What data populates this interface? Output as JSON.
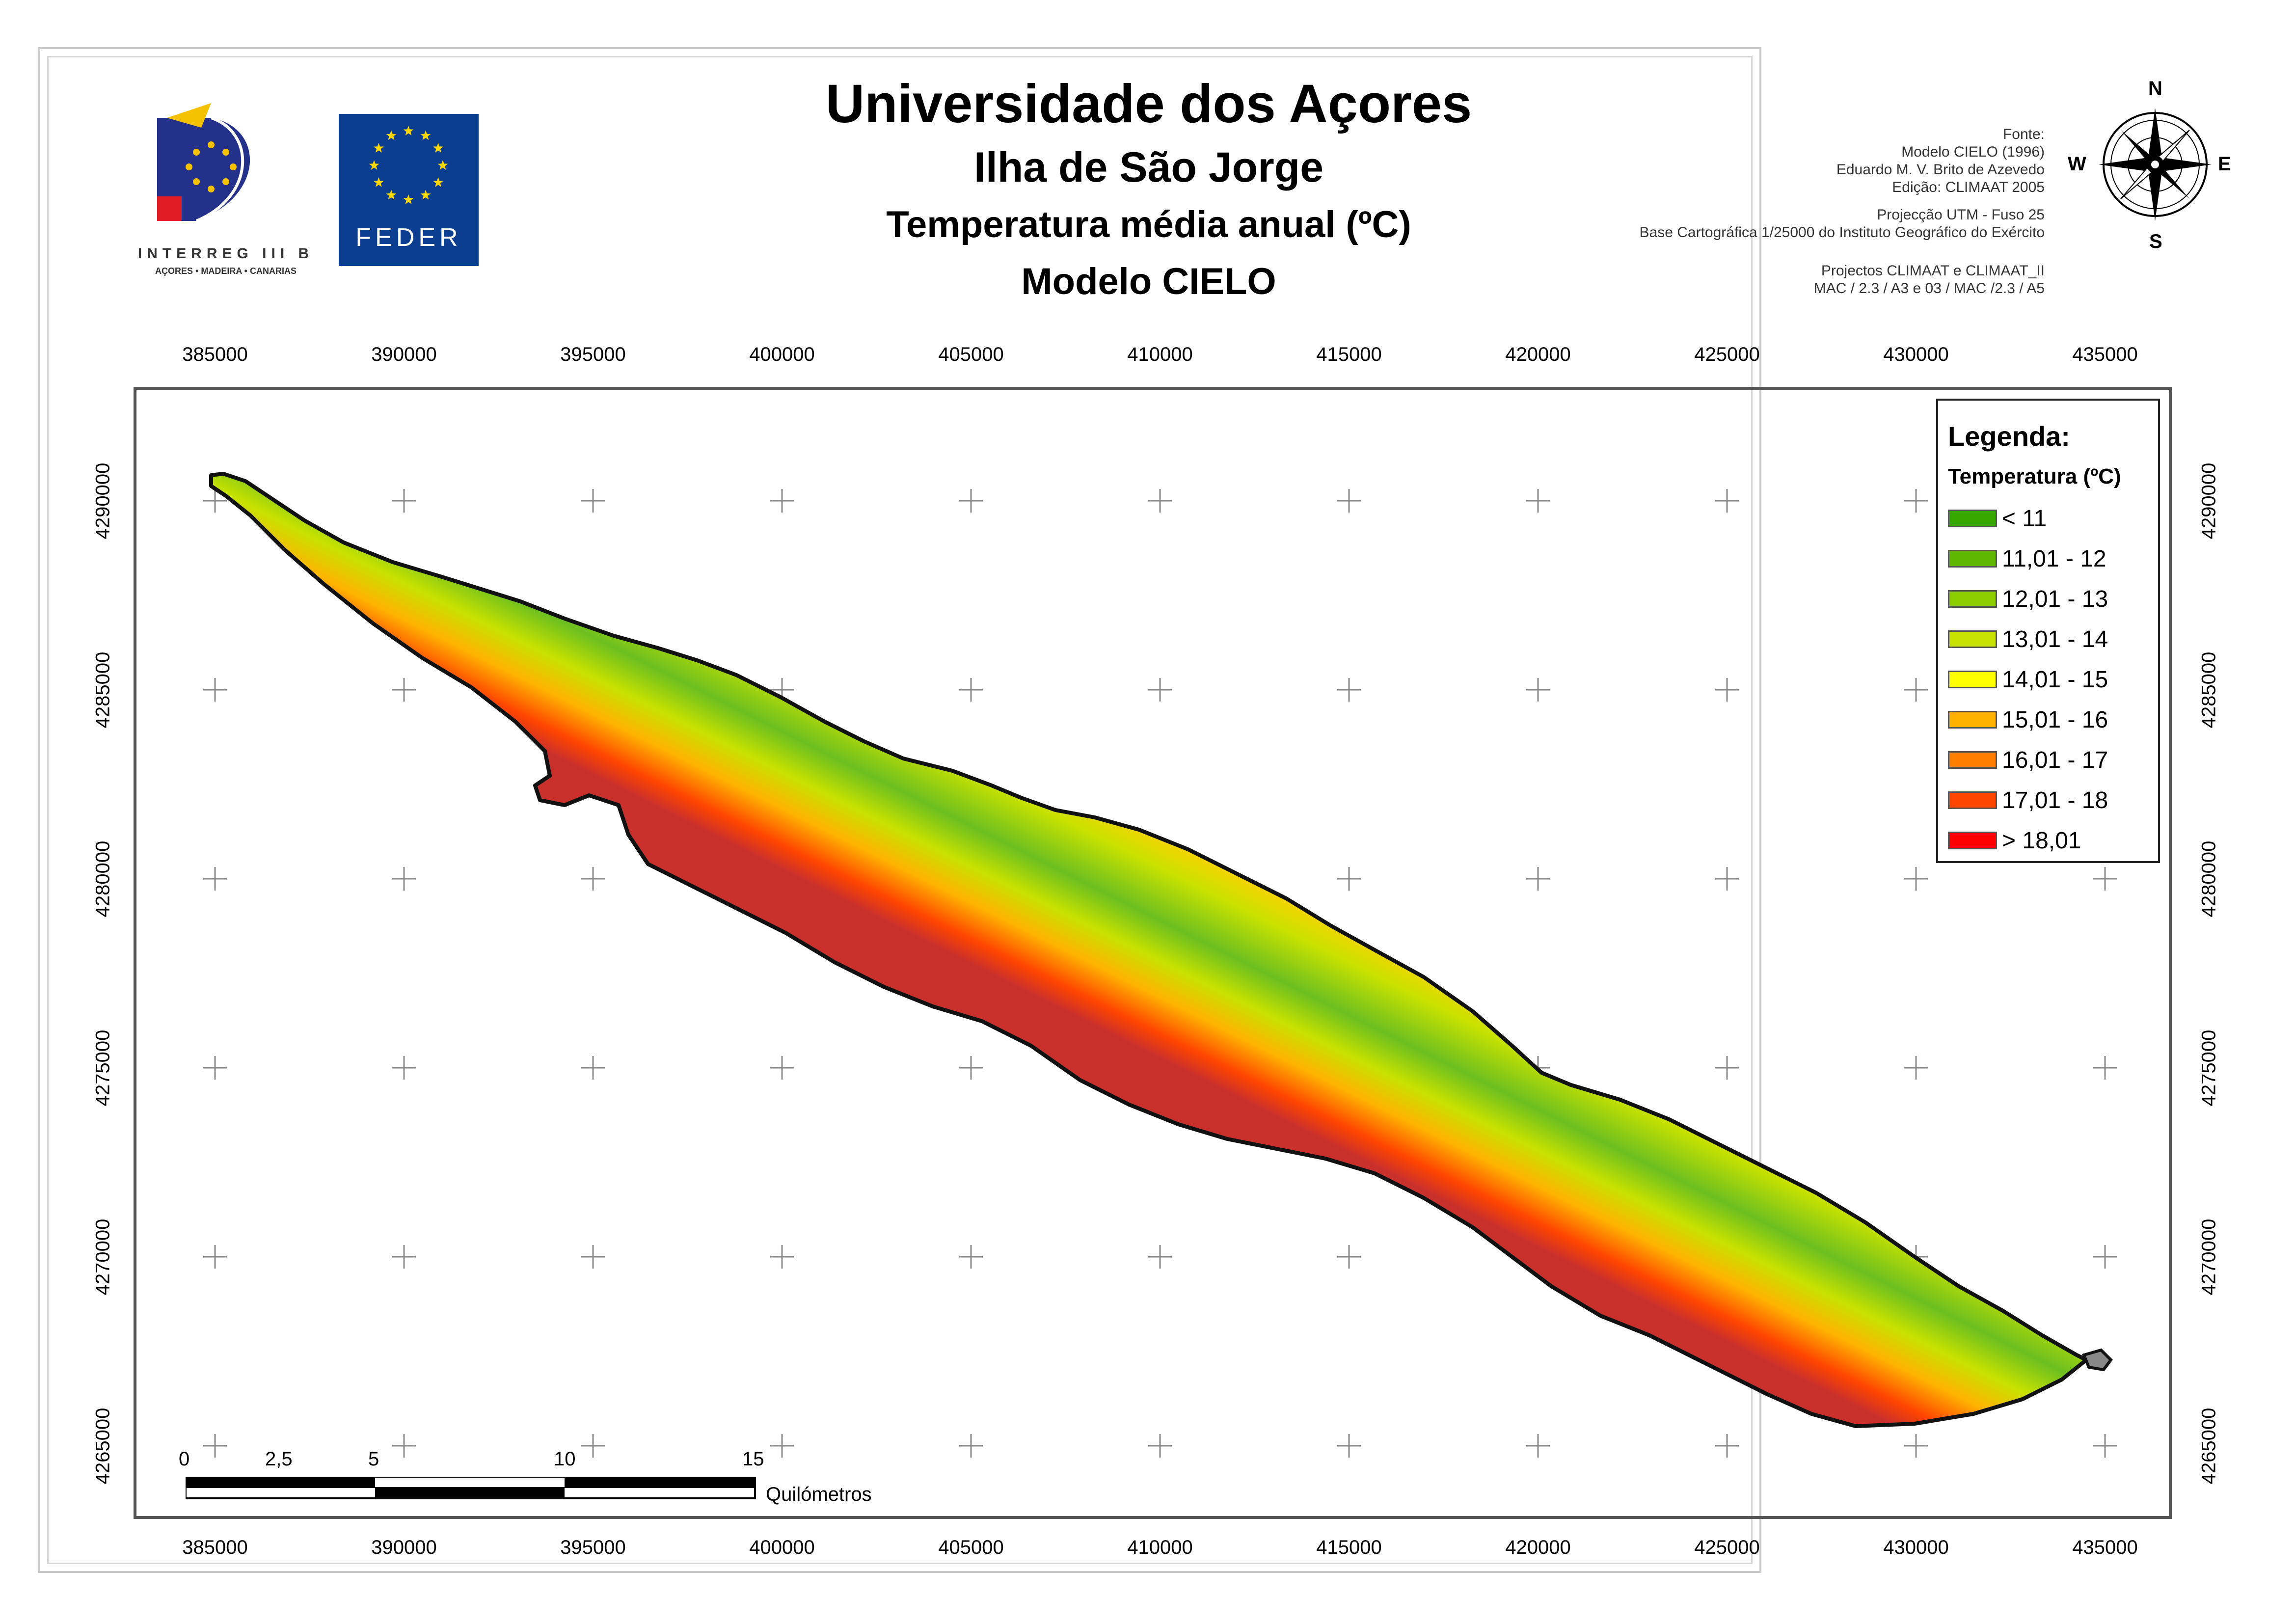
{
  "header": {
    "title": "Universidade dos Açores",
    "island": "Ilha de São Jorge",
    "subject": "Temperatura média anual (ºC)",
    "model": "Modelo CIELO"
  },
  "source": {
    "lines": [
      "Fonte:",
      "Modelo CIELO (1996)",
      "Eduardo M. V. Brito de Azevedo",
      "Edição: CLIMAAT 2005",
      "Projecção UTM - Fuso 25",
      "Base Cartográfica 1/25000 do Instituto Geográfico do Exército",
      "Projectos CLIMAAT e CLIMAAT_II",
      "MAC / 2.3 / A3 e 03 / MAC /2.3 / A5"
    ]
  },
  "logos": {
    "interreg_name": "INTERREG III B",
    "interreg_regions": "AÇORES • MADEIRA • CANARIAS",
    "feder": "FEDER"
  },
  "compass": {
    "n": "N",
    "s": "S",
    "e": "E",
    "w": "W"
  },
  "axes": {
    "x_ticks": [
      "385000",
      "390000",
      "395000",
      "400000",
      "405000",
      "410000",
      "415000",
      "420000",
      "425000",
      "430000",
      "435000"
    ],
    "y_ticks": [
      "4290000",
      "4285000",
      "4280000",
      "4275000",
      "4270000",
      "4265000"
    ]
  },
  "legend": {
    "title": "Legenda:",
    "subtitle": "Temperatura (ºC)",
    "items": [
      {
        "label": "< 11",
        "color": "#38a800"
      },
      {
        "label": "11,01 - 12",
        "color": "#5fb700"
      },
      {
        "label": "12,01 - 13",
        "color": "#8ccd00"
      },
      {
        "label": "13,01 - 14",
        "color": "#c8e200"
      },
      {
        "label": "14,01 - 15",
        "color": "#ffff00"
      },
      {
        "label": "15,01 - 16",
        "color": "#ffb300"
      },
      {
        "label": "16,01 - 17",
        "color": "#ff7f00"
      },
      {
        "label": "17,01 - 18",
        "color": "#ff4500"
      },
      {
        "label": "> 18,01",
        "color": "#ff0000"
      }
    ]
  },
  "scalebar": {
    "labels": [
      "0",
      "2,5",
      "5",
      "10",
      "15"
    ],
    "unit": "Quilómetros"
  }
}
